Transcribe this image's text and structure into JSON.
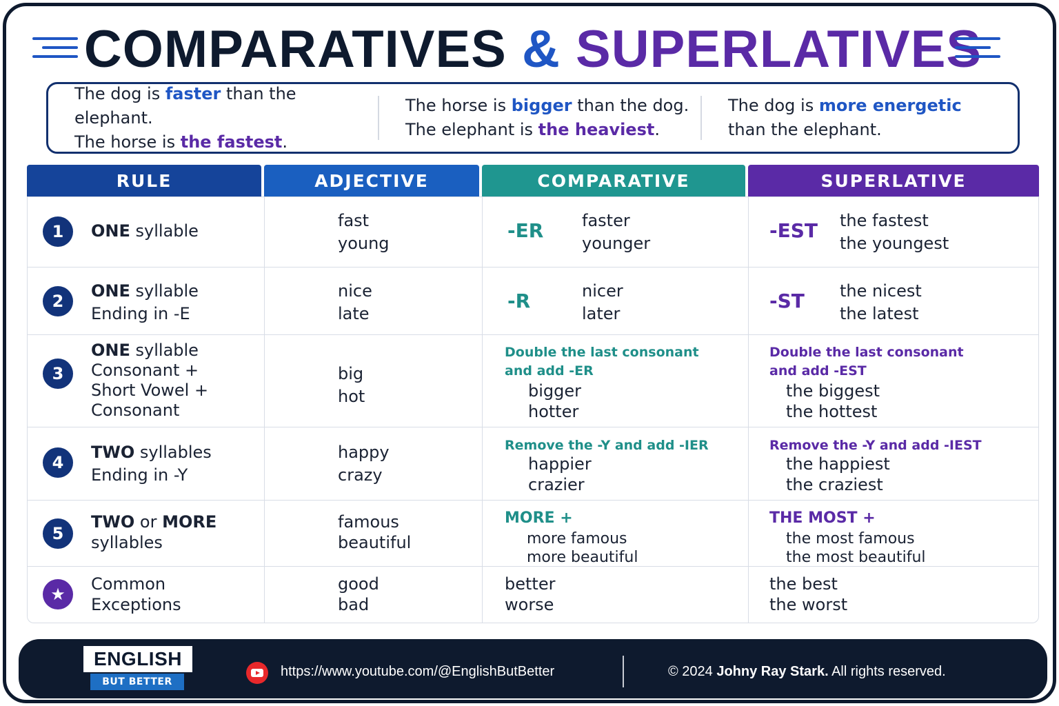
{
  "title": {
    "part1": "COMPARATIVES",
    "amp": "&",
    "part2": "SUPERLATIVES"
  },
  "examples": [
    {
      "line1_pre": "The dog is ",
      "line1_hl": "faster",
      "line1_post": " than the elephant.",
      "line2_pre": "The horse is ",
      "line2_hl": "the fastest",
      "line2_post": "."
    },
    {
      "line1_pre": "The horse is ",
      "line1_hl": "bigger",
      "line1_post": " than the dog.",
      "line2_pre": "The elephant is ",
      "line2_hl": "the heaviest",
      "line2_post": "."
    },
    {
      "line1_pre": "The dog is ",
      "line1_hl": "more energetic",
      "line1_post": "",
      "line2_pre": "than the elephant.",
      "line2_hl": "",
      "line2_post": ""
    }
  ],
  "headers": {
    "rule": "RULE",
    "adjective": "ADJECTIVE",
    "comparative": "COMPARATIVE",
    "superlative": "SUPERLATIVE"
  },
  "rows": [
    {
      "num": "1",
      "rule_bold": "ONE",
      "rule_rest": " syllable",
      "rule_line2": "",
      "rule_line3": "",
      "rule_line4": "",
      "adj": [
        "fast",
        "young"
      ],
      "comp_suffix": "-ER",
      "comp_words": [
        "faster",
        "younger"
      ],
      "sup_suffix": "-EST",
      "sup_words": [
        "the fastest",
        "the youngest"
      ]
    },
    {
      "num": "2",
      "rule_bold": "ONE",
      "rule_rest": " syllable",
      "rule_line2": "Ending in -E",
      "adj": [
        "nice",
        "late"
      ],
      "comp_suffix": "-R",
      "comp_words": [
        "nicer",
        "later"
      ],
      "sup_suffix": "-ST",
      "sup_words": [
        "the nicest",
        "the latest"
      ]
    },
    {
      "num": "3",
      "rule_bold": "ONE",
      "rule_rest": " syllable",
      "rule_line2": "Consonant +",
      "rule_line3": "Short Vowel +",
      "rule_line4": "Consonant",
      "adj": [
        "big",
        "hot"
      ],
      "comp_note1": "Double the last consonant",
      "comp_note2": "and add -ER",
      "comp_words": [
        "bigger",
        "hotter"
      ],
      "sup_note1": "Double the last consonant",
      "sup_note2": "and add -EST",
      "sup_words": [
        "the biggest",
        "the hottest"
      ]
    },
    {
      "num": "4",
      "rule_bold": "TWO",
      "rule_rest": " syllables",
      "rule_line2": "Ending in -Y",
      "adj": [
        "happy",
        "crazy"
      ],
      "comp_note1": "Remove the -Y and add -IER",
      "comp_words": [
        "happier",
        "crazier"
      ],
      "sup_note1": "Remove the -Y and add -IEST",
      "sup_words": [
        "the happiest",
        "the craziest"
      ]
    },
    {
      "num": "5",
      "rule_bold": "TWO",
      "rule_mid": " or ",
      "rule_bold2": "MORE",
      "rule_line2": "syllables",
      "adj": [
        "famous",
        "beautiful"
      ],
      "comp_note1": "MORE +",
      "comp_words": [
        "more famous",
        "more beautiful"
      ],
      "sup_note1": "THE MOST +",
      "sup_words": [
        "the most famous",
        "the most beautiful"
      ]
    },
    {
      "num": "★",
      "rule_line1": "Common",
      "rule_line2": "Exceptions",
      "adj": [
        "good",
        "bad"
      ],
      "comp_words": [
        "better",
        "worse"
      ],
      "sup_words": [
        "the best",
        "the worst"
      ]
    }
  ],
  "footer": {
    "logo_top": "ENGLISH",
    "logo_bottom": "BUT BETTER",
    "url": "https://www.youtube.com/@EnglishButBetter",
    "copy_pre": "© 2024 ",
    "copy_name": "Johny Ray Stark.",
    "copy_post": " All rights reserved."
  },
  "colors": {
    "navy": "#0e1a2e",
    "blue": "#1f56c4",
    "teal": "#1f8f89",
    "purple": "#5a2aa6"
  }
}
